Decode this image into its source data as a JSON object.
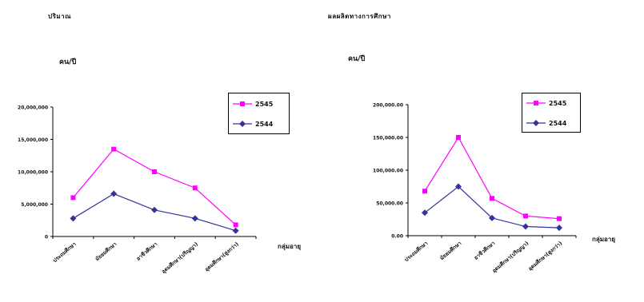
{
  "charts": [
    {
      "id": "left",
      "header": "ปริมาณ",
      "unit": "คน/ปี",
      "x_axis_label": "กลุ่มอายุ",
      "chart_data": {
        "type": "line",
        "categories": [
          "ประถมศึกษา",
          "มัธยมศึกษา",
          "อาชีวศึกษา",
          "อุดมศึกษา(ปริญญา)",
          "อุดมศึกษา(สูงกว่า)"
        ],
        "ylim": [
          0,
          20000000
        ],
        "yticks": [
          "0",
          "5,000,000",
          "10,000,000",
          "15,000,000",
          "20,000,000"
        ],
        "grid": false,
        "legend_position": "top-right",
        "series": [
          {
            "name": "2545",
            "color": "#ff00ff",
            "marker": "square",
            "values": [
              6000000,
              13500000,
              10000000,
              7500000,
              1800000
            ]
          },
          {
            "name": "2544",
            "color": "#333399",
            "marker": "diamond",
            "values": [
              2800000,
              6600000,
              4100000,
              2800000,
              900000
            ]
          }
        ]
      }
    },
    {
      "id": "right",
      "header": "ผลผลิตทางการศึกษา",
      "unit": "คน/ปี",
      "x_axis_label": "กลุ่มอายุ",
      "chart_data": {
        "type": "line",
        "categories": [
          "ประถมศึกษา",
          "มัธยมศึกษา",
          "อาชีวศึกษา",
          "อุดมศึกษา(ปริญญา)",
          "อุดมศึกษา(สูงกว่า)"
        ],
        "ylim": [
          0,
          200000
        ],
        "yticks": [
          "0.00",
          "50,000.00",
          "100,000.00",
          "150,000.00",
          "200,000.00"
        ],
        "grid": false,
        "legend_position": "top-right",
        "series": [
          {
            "name": "2545",
            "color": "#ff00ff",
            "marker": "square",
            "values": [
              68000,
              150000,
              57000,
              30000,
              26000
            ]
          },
          {
            "name": "2544",
            "color": "#333399",
            "marker": "diamond",
            "values": [
              35000,
              75000,
              27000,
              14000,
              12000
            ]
          }
        ]
      }
    }
  ]
}
